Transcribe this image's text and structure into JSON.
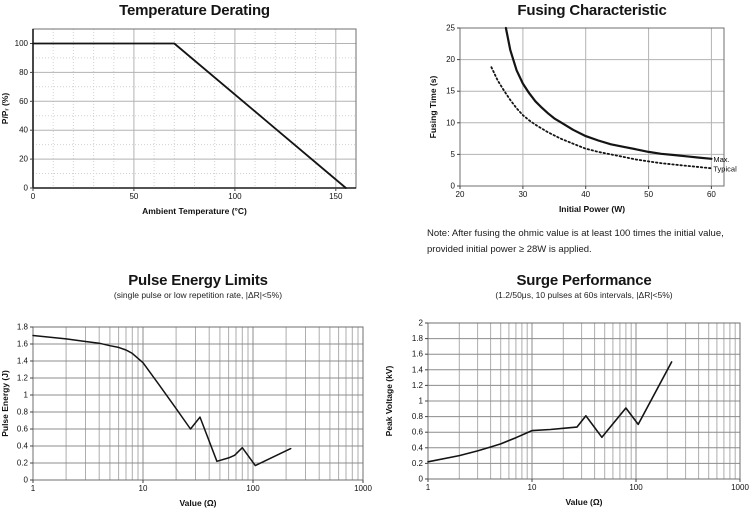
{
  "chart_data": [
    {
      "type": "line",
      "title": "Temperature Derating",
      "xlabel": "Ambient Temperature (°C)",
      "ylabel": "P/Pᵣ (%)",
      "xaxis": {
        "scale": "linear",
        "min": 0,
        "max": 160,
        "ticks": [
          {
            "v": 0,
            "l": "0"
          },
          {
            "v": 50,
            "l": "50"
          },
          {
            "v": 100,
            "l": "100"
          },
          {
            "v": 150,
            "l": "150"
          }
        ],
        "grid_major": [
          50,
          100,
          150
        ],
        "grid_minor": [
          10,
          20,
          30,
          40,
          60,
          70,
          80,
          90,
          110,
          120,
          130,
          140
        ],
        "minor_dotted": true
      },
      "yaxis": {
        "scale": "linear",
        "min": 0,
        "max": 110,
        "ticks": [
          {
            "v": 0,
            "l": "0"
          },
          {
            "v": 20,
            "l": "20"
          },
          {
            "v": 40,
            "l": "40"
          },
          {
            "v": 60,
            "l": "60"
          },
          {
            "v": 80,
            "l": "80"
          },
          {
            "v": 100,
            "l": "100"
          }
        ],
        "grid_major": [
          20,
          40,
          60,
          80,
          100
        ],
        "grid_minor": [
          10,
          30,
          50,
          70,
          90
        ],
        "minor_dotted": true
      },
      "axis_dark": true,
      "grid": "on",
      "series": [
        {
          "name": "derating-curve",
          "style": "solid",
          "width": 1.8,
          "points": [
            [
              0,
              100
            ],
            [
              70,
              100
            ],
            [
              155,
              0
            ]
          ]
        }
      ]
    },
    {
      "type": "line",
      "title": "Fusing Characteristic",
      "xlabel": "Initial Power (W)",
      "ylabel": "Fusing Time (s)",
      "note": "Note: After fusing the ohmic value is at least 100 times the initial value, provided initial power ≥ 28W is applied.",
      "xaxis": {
        "scale": "linear",
        "min": 20,
        "max": 62,
        "ticks": [
          {
            "v": 20,
            "l": "20"
          },
          {
            "v": 30,
            "l": "30"
          },
          {
            "v": 40,
            "l": "40"
          },
          {
            "v": 50,
            "l": "50"
          },
          {
            "v": 60,
            "l": "60"
          }
        ],
        "grid_major": [
          30,
          40,
          50,
          60
        ],
        "grid_minor": []
      },
      "yaxis": {
        "scale": "linear",
        "min": 0,
        "max": 25,
        "ticks": [
          {
            "v": 0,
            "l": "0"
          },
          {
            "v": 5,
            "l": "5"
          },
          {
            "v": 10,
            "l": "10"
          },
          {
            "v": 15,
            "l": "15"
          },
          {
            "v": 20,
            "l": "20"
          },
          {
            "v": 25,
            "l": "25"
          }
        ],
        "grid_major": [
          5,
          10,
          15,
          20
        ],
        "grid_minor": []
      },
      "grid": "on",
      "series": [
        {
          "name": "Max.",
          "style": "solid",
          "width": 2.2,
          "end_label": "Max.",
          "points": [
            [
              27.3,
              25
            ],
            [
              28,
              21.5
            ],
            [
              29,
              18.3
            ],
            [
              30,
              16.2
            ],
            [
              31,
              14.7
            ],
            [
              32,
              13.4
            ],
            [
              33,
              12.4
            ],
            [
              34,
              11.5
            ],
            [
              35,
              10.7
            ],
            [
              36,
              10.1
            ],
            [
              38,
              8.9
            ],
            [
              40,
              7.9
            ],
            [
              42,
              7.2
            ],
            [
              44,
              6.6
            ],
            [
              46,
              6.2
            ],
            [
              48,
              5.8
            ],
            [
              50,
              5.4
            ],
            [
              52,
              5.1
            ],
            [
              54,
              4.9
            ],
            [
              56,
              4.7
            ],
            [
              58,
              4.5
            ],
            [
              60,
              4.3
            ]
          ]
        },
        {
          "name": "Typical",
          "style": "dotted",
          "width": 1.8,
          "end_label": "Typical",
          "points": [
            [
              25,
              18.8
            ],
            [
              26,
              16.7
            ],
            [
              27,
              15.1
            ],
            [
              28,
              13.6
            ],
            [
              29,
              12.3
            ],
            [
              30,
              11.2
            ],
            [
              31,
              10.4
            ],
            [
              32,
              9.7
            ],
            [
              33,
              9.1
            ],
            [
              34,
              8.5
            ],
            [
              35,
              8.0
            ],
            [
              36,
              7.5
            ],
            [
              38,
              6.7
            ],
            [
              40,
              5.9
            ],
            [
              42,
              5.4
            ],
            [
              44,
              5.0
            ],
            [
              46,
              4.6
            ],
            [
              48,
              4.2
            ],
            [
              50,
              3.9
            ],
            [
              52,
              3.6
            ],
            [
              54,
              3.4
            ],
            [
              56,
              3.2
            ],
            [
              58,
              3.0
            ],
            [
              60,
              2.8
            ]
          ]
        }
      ]
    },
    {
      "type": "line",
      "title": "Pulse Energy Limits",
      "subtitle": "(single pulse or low repetition rate, |ΔR|<5%)",
      "xlabel": "Value (Ω)",
      "ylabel": "Pulse Energy (J)",
      "xaxis": {
        "scale": "log",
        "min": 1,
        "max": 1000,
        "ticks": [
          {
            "v": 1,
            "l": "1"
          },
          {
            "v": 10,
            "l": "10"
          },
          {
            "v": 100,
            "l": "100"
          },
          {
            "v": 1000,
            "l": "1000"
          }
        ],
        "grid_major": [
          10,
          100
        ],
        "grid_minor": [
          2,
          3,
          4,
          5,
          6,
          7,
          8,
          9,
          20,
          30,
          40,
          50,
          60,
          70,
          80,
          90,
          200,
          300,
          400,
          500,
          600,
          700,
          800,
          900
        ]
      },
      "yaxis": {
        "scale": "linear",
        "min": 0,
        "max": 1.8,
        "ticks": [
          {
            "v": 0,
            "l": "0"
          },
          {
            "v": 0.2,
            "l": "0.2"
          },
          {
            "v": 0.4,
            "l": "0.4"
          },
          {
            "v": 0.6,
            "l": "0.6"
          },
          {
            "v": 0.8,
            "l": "0.8"
          },
          {
            "v": 1,
            "l": "1"
          },
          {
            "v": 1.2,
            "l": "1.2"
          },
          {
            "v": 1.4,
            "l": "1.4"
          },
          {
            "v": 1.6,
            "l": "1.6"
          },
          {
            "v": 1.8,
            "l": "1.8"
          }
        ],
        "grid_major": [
          0.2,
          0.4,
          0.6,
          0.8,
          1,
          1.2,
          1.4,
          1.6
        ],
        "grid_minor": []
      },
      "grid": "on",
      "series": [
        {
          "name": "pulse-energy-curve",
          "style": "solid",
          "width": 1.5,
          "points": [
            [
              1,
              1.7
            ],
            [
              2,
              1.66
            ],
            [
              3,
              1.63
            ],
            [
              4,
              1.61
            ],
            [
              5,
              1.58
            ],
            [
              6,
              1.56
            ],
            [
              7,
              1.53
            ],
            [
              8,
              1.49
            ],
            [
              10,
              1.38
            ],
            [
              14,
              1.12
            ],
            [
              20,
              0.84
            ],
            [
              27,
              0.6
            ],
            [
              33,
              0.74
            ],
            [
              47,
              0.22
            ],
            [
              60,
              0.26
            ],
            [
              68,
              0.29
            ],
            [
              80,
              0.38
            ],
            [
              105,
              0.17
            ],
            [
              220,
              0.37
            ]
          ]
        }
      ]
    },
    {
      "type": "line",
      "title": "Surge Performance",
      "subtitle": "(1.2/50μs, 10 pulses at 60s intervals, |ΔR|<5%)",
      "xlabel": "Value (Ω)",
      "ylabel": "Peak Voltage (kV)",
      "xaxis": {
        "scale": "log",
        "min": 1,
        "max": 1000,
        "ticks": [
          {
            "v": 1,
            "l": "1"
          },
          {
            "v": 10,
            "l": "10"
          },
          {
            "v": 100,
            "l": "100"
          },
          {
            "v": 1000,
            "l": "1000"
          }
        ],
        "grid_major": [
          10,
          100
        ],
        "grid_minor": [
          2,
          3,
          4,
          5,
          6,
          7,
          8,
          9,
          20,
          30,
          40,
          50,
          60,
          70,
          80,
          90,
          200,
          300,
          400,
          500,
          600,
          700,
          800,
          900
        ]
      },
      "yaxis": {
        "scale": "linear",
        "min": 0,
        "max": 2,
        "ticks": [
          {
            "v": 0,
            "l": "0"
          },
          {
            "v": 0.2,
            "l": "0.2"
          },
          {
            "v": 0.4,
            "l": "0.4"
          },
          {
            "v": 0.6,
            "l": "0.6"
          },
          {
            "v": 0.8,
            "l": "0.8"
          },
          {
            "v": 1,
            "l": "1"
          },
          {
            "v": 1.2,
            "l": "1.2"
          },
          {
            "v": 1.4,
            "l": "1.4"
          },
          {
            "v": 1.6,
            "l": "1.6"
          },
          {
            "v": 1.8,
            "l": "1.8"
          },
          {
            "v": 2,
            "l": "2"
          }
        ],
        "grid_major": [
          0.2,
          0.4,
          0.6,
          0.8,
          1,
          1.2,
          1.4,
          1.6,
          1.8
        ],
        "grid_minor": []
      },
      "grid": "on",
      "series": [
        {
          "name": "surge-curve",
          "style": "solid",
          "width": 1.6,
          "points": [
            [
              1,
              0.22
            ],
            [
              2,
              0.3
            ],
            [
              3,
              0.36
            ],
            [
              4,
              0.41
            ],
            [
              5,
              0.45
            ],
            [
              7,
              0.53
            ],
            [
              10,
              0.62
            ],
            [
              15,
              0.635
            ],
            [
              20,
              0.65
            ],
            [
              27,
              0.665
            ],
            [
              33,
              0.81
            ],
            [
              40,
              0.66
            ],
            [
              47,
              0.535
            ],
            [
              80,
              0.91
            ],
            [
              105,
              0.7
            ],
            [
              220,
              1.5
            ]
          ]
        }
      ]
    }
  ]
}
